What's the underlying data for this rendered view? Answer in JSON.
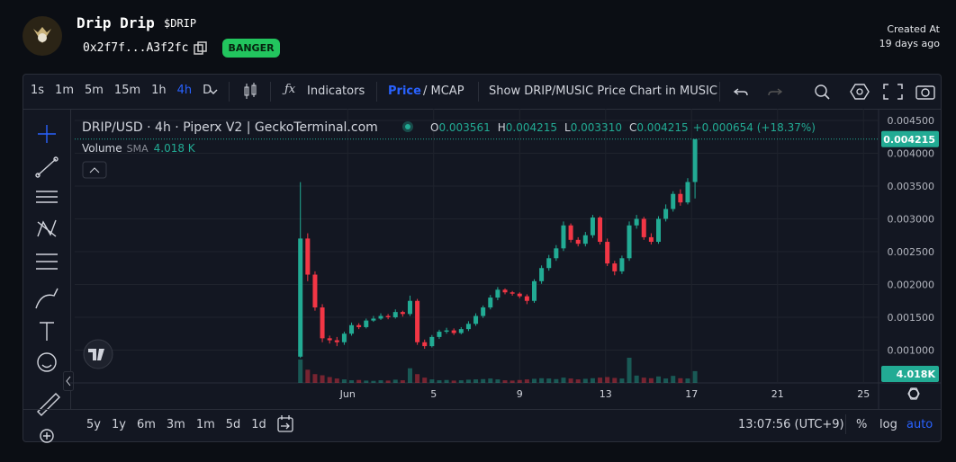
{
  "header": {
    "name": "Drip Drip",
    "ticker": "$DRIP",
    "address": "0x2f7f...A3f2fc",
    "badge": "BANGER",
    "created_label": "Created At",
    "created_value": "19 days ago"
  },
  "toolbar": {
    "intervals": [
      {
        "label": "1s",
        "active": false
      },
      {
        "label": "1m",
        "active": false
      },
      {
        "label": "5m",
        "active": false
      },
      {
        "label": "15m",
        "active": false
      },
      {
        "label": "1h",
        "active": false
      },
      {
        "label": "4h",
        "active": true
      },
      {
        "label": "D",
        "active": false
      }
    ],
    "indicators": "Indicators",
    "price": "Price",
    "mcap": "/ MCAP",
    "switch": "Show DRIP/MUSIC Price Chart in MUSIC"
  },
  "chart_data": {
    "type": "candlestick",
    "title": "DRIP/USD · 4h · Piperx V2 | GeckoTerminal.com",
    "ohlc_labels": [
      {
        "key": "O",
        "value": "0.003561"
      },
      {
        "key": "H",
        "value": "0.004215"
      },
      {
        "key": "L",
        "value": "0.003310"
      },
      {
        "key": "C",
        "value": "0.004215"
      }
    ],
    "change_label": "+0.000654 (+18.37%)",
    "volume_label": "Volume",
    "volume_ma_label": "SMA",
    "volume_ma_value": "4.018 K",
    "last_price_label": "0.004215",
    "last_volume_label": "4.018K",
    "x": [
      -1.2,
      -0.86,
      -0.52,
      -0.18,
      0.16,
      0.5,
      0.84,
      1.18,
      1.52,
      1.86,
      2.2,
      2.54,
      2.88,
      3.22,
      3.56,
      3.9,
      4.24,
      4.58,
      4.92,
      5.26,
      5.6,
      5.94,
      6.28,
      6.62,
      6.96,
      7.3,
      7.64,
      7.98,
      8.32,
      8.66,
      9,
      9.34,
      9.68,
      10.02,
      10.36,
      10.7,
      11.04,
      11.38,
      11.72,
      12.06,
      12.4,
      12.74,
      13.08,
      13.42,
      13.76,
      14.1,
      14.44,
      14.78,
      15.12,
      15.46,
      15.8,
      16.14,
      16.48,
      16.82,
      17.16
    ],
    "open": [
      0.0009,
      0.0027,
      0.00215,
      0.00165,
      0.00118,
      0.00115,
      0.00112,
      0.00125,
      0.00138,
      0.00135,
      0.00145,
      0.00148,
      0.00152,
      0.0015,
      0.00158,
      0.00155,
      0.00175,
      0.00112,
      0.00106,
      0.0012,
      0.00128,
      0.0013,
      0.00126,
      0.00132,
      0.0014,
      0.00152,
      0.00165,
      0.0018,
      0.00192,
      0.00188,
      0.00186,
      0.00182,
      0.00175,
      0.00205,
      0.00225,
      0.0024,
      0.00255,
      0.0029,
      0.00268,
      0.00262,
      0.00275,
      0.00302,
      0.00265,
      0.00232,
      0.0022,
      0.0024,
      0.0029,
      0.003,
      0.00272,
      0.00265,
      0.003,
      0.00315,
      0.00338,
      0.00325,
      0.003561
    ],
    "high": [
      0.00356,
      0.00278,
      0.0022,
      0.0017,
      0.00122,
      0.0012,
      0.00128,
      0.00142,
      0.00141,
      0.00148,
      0.00152,
      0.00156,
      0.00155,
      0.00162,
      0.0016,
      0.00183,
      0.00178,
      0.00116,
      0.00123,
      0.00131,
      0.00134,
      0.00133,
      0.00135,
      0.00144,
      0.00156,
      0.00168,
      0.00184,
      0.00196,
      0.00194,
      0.0019,
      0.00188,
      0.00185,
      0.00208,
      0.00229,
      0.00245,
      0.0026,
      0.00296,
      0.00293,
      0.00272,
      0.0028,
      0.00306,
      0.00304,
      0.0027,
      0.00236,
      0.00244,
      0.00296,
      0.00306,
      0.00303,
      0.00278,
      0.00304,
      0.00322,
      0.00342,
      0.00345,
      0.00362,
      0.004215
    ],
    "low": [
      0.00088,
      0.00205,
      0.0016,
      0.00112,
      0.0011,
      0.00106,
      0.00108,
      0.00122,
      0.00132,
      0.00133,
      0.00143,
      0.00146,
      0.00147,
      0.00148,
      0.00151,
      0.00152,
      0.00108,
      0.00102,
      0.00104,
      0.00117,
      0.00125,
      0.00123,
      0.00124,
      0.00129,
      0.00137,
      0.00149,
      0.00162,
      0.00176,
      0.00185,
      0.00183,
      0.00179,
      0.0017,
      0.00172,
      0.00201,
      0.00221,
      0.00236,
      0.00251,
      0.00264,
      0.00258,
      0.00258,
      0.00271,
      0.00261,
      0.00228,
      0.00214,
      0.00216,
      0.00236,
      0.00285,
      0.00268,
      0.00261,
      0.00262,
      0.00296,
      0.00311,
      0.0032,
      0.00322,
      0.00331
    ],
    "close": [
      0.0027,
      0.00215,
      0.00165,
      0.00118,
      0.00115,
      0.00112,
      0.00125,
      0.00138,
      0.00135,
      0.00145,
      0.00148,
      0.00152,
      0.0015,
      0.00158,
      0.00155,
      0.00175,
      0.00112,
      0.00106,
      0.0012,
      0.00128,
      0.0013,
      0.00126,
      0.00132,
      0.0014,
      0.00152,
      0.00165,
      0.0018,
      0.00192,
      0.00188,
      0.00186,
      0.00182,
      0.00175,
      0.00205,
      0.00225,
      0.0024,
      0.00255,
      0.0029,
      0.00268,
      0.00262,
      0.00275,
      0.00302,
      0.00265,
      0.00232,
      0.0022,
      0.0024,
      0.0029,
      0.003,
      0.00272,
      0.00265,
      0.003,
      0.00315,
      0.00338,
      0.00325,
      0.003561,
      0.004215
    ],
    "volume": [
      8000,
      4500,
      3000,
      2600,
      2000,
      1500,
      1200,
      900,
      1000,
      800,
      700,
      900,
      800,
      1100,
      900,
      5000,
      3000,
      1800,
      1200,
      900,
      1000,
      800,
      900,
      1100,
      1200,
      1300,
      1500,
      1200,
      900,
      800,
      1000,
      1200,
      1400,
      1600,
      1500,
      1300,
      1800,
      1500,
      1200,
      1400,
      1600,
      1800,
      2000,
      1700,
      1500,
      8600,
      2500,
      1800,
      1600,
      2200,
      1500,
      2400,
      1600,
      1500,
      4018
    ],
    "up_color": "#22ab94",
    "down_color": "#f23645",
    "xlim": [
      -11.7,
      25.7
    ],
    "xticks": [
      {
        "value": 1,
        "label": "Jun"
      },
      5,
      9,
      13,
      17,
      21,
      25
    ],
    "ylim": [
      0.0005,
      0.00465
    ],
    "yticks": [
      {
        "value": 0.0045,
        "label": "0.004500"
      },
      {
        "value": 0.004,
        "label": "0.004000"
      },
      {
        "value": 0.0035,
        "label": "0.003500"
      },
      {
        "value": 0.003,
        "label": "0.003000"
      },
      {
        "value": 0.0025,
        "label": "0.002500"
      },
      {
        "value": 0.002,
        "label": "0.002000"
      },
      {
        "value": 0.0015,
        "label": "0.001500"
      },
      {
        "value": 0.001,
        "label": "0.001000"
      }
    ],
    "volume_lim": [
      0,
      93000
    ],
    "grid": true
  },
  "footer": {
    "ranges": [
      "5y",
      "1y",
      "6m",
      "3m",
      "1m",
      "5d",
      "1d"
    ],
    "time": "13:07:56 (UTC+9)",
    "percent": "%",
    "log": "log",
    "auto": "auto"
  }
}
